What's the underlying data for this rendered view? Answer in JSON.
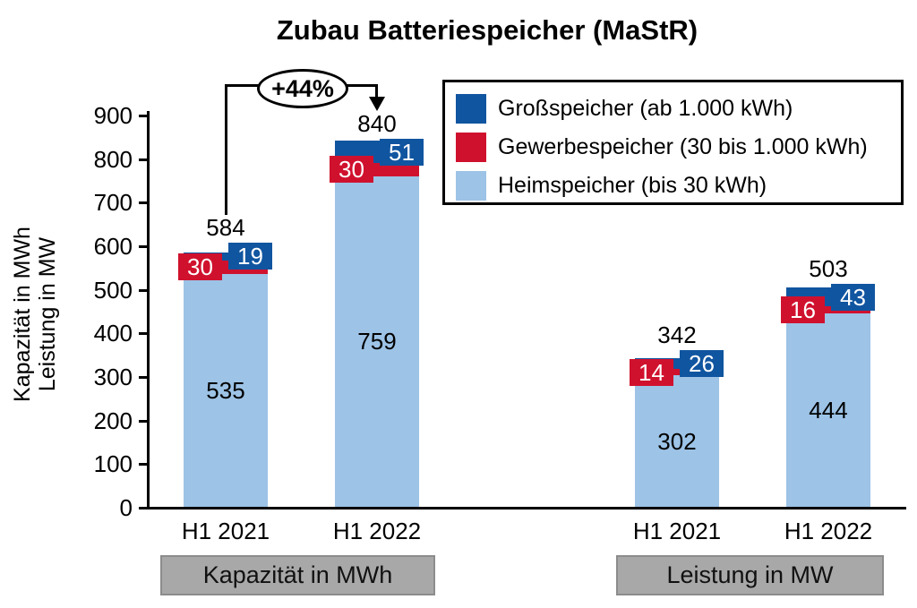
{
  "chart_data": {
    "type": "bar",
    "stacked": true,
    "grid": false,
    "title": "Zubau Batteriespeicher (MaStR)",
    "y_axis": {
      "label_line1": "Kapazität in MWh",
      "label_line2": "Leistung in MW",
      "min": 0,
      "max": 900,
      "tick_step": 100,
      "ticks": [
        0,
        100,
        200,
        300,
        400,
        500,
        600,
        700,
        800,
        900
      ]
    },
    "series": [
      {
        "key": "grossspeicher",
        "name": "Großspeicher (ab 1.000 kWh)",
        "color": "#1055A0",
        "value_text_color": "#FFFFFF"
      },
      {
        "key": "gewerbespeicher",
        "name": "Gewerbespeicher (30 bis 1.000 kWh)",
        "color": "#D0112E",
        "value_text_color": "#FFFFFF"
      },
      {
        "key": "heimspeicher",
        "name": "Heimspeicher (bis 30 kWh)",
        "color": "#9DC3E6",
        "value_text_color": "#000000"
      }
    ],
    "legend_position": "top-right",
    "groups": [
      {
        "label": "Kapazität in MWh",
        "bars": [
          {
            "x": "H1 2021",
            "total": 584,
            "values": {
              "heimspeicher": 535,
              "gewerbespeicher": 30,
              "grossspeicher": 19
            }
          },
          {
            "x": "H1 2022",
            "total": 840,
            "values": {
              "heimspeicher": 759,
              "gewerbespeicher": 30,
              "grossspeicher": 51
            }
          }
        ]
      },
      {
        "label": "Leistung in MW",
        "bars": [
          {
            "x": "H1 2021",
            "total": 342,
            "values": {
              "heimspeicher": 302,
              "gewerbespeicher": 14,
              "grossspeicher": 26
            }
          },
          {
            "x": "H1 2022",
            "total": 503,
            "values": {
              "heimspeicher": 444,
              "gewerbespeicher": 16,
              "grossspeicher": 43
            }
          }
        ]
      }
    ],
    "annotation": {
      "text": "+44%"
    },
    "colors": {
      "axis": "#000000",
      "background": "#FFFFFF",
      "category_box_fill": "#A8A8A8",
      "category_box_border": "#8C8C8C"
    }
  }
}
